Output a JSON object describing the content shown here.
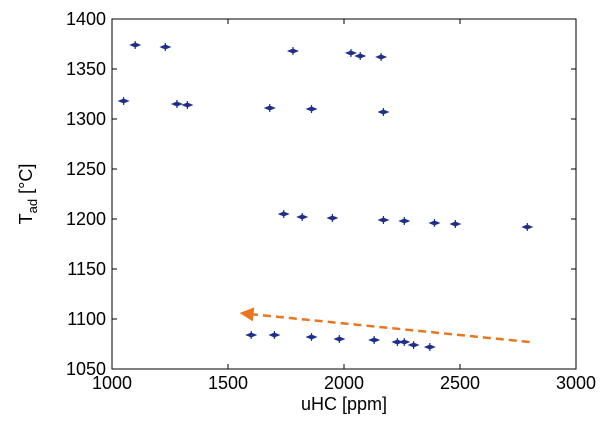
{
  "chart_data": {
    "type": "scatter",
    "title": "",
    "xlabel": "uHC [ppm]",
    "ylabel_main": "T",
    "ylabel_sub": "ad",
    "ylabel_unit": " [°C]",
    "xlim": [
      1000,
      3000
    ],
    "ylim": [
      1050,
      1400
    ],
    "xticks": [
      1000,
      1500,
      2000,
      2500,
      3000
    ],
    "yticks": [
      1050,
      1100,
      1150,
      1200,
      1250,
      1300,
      1350,
      1400
    ],
    "grid": false,
    "marker_color": "#1f2f8a",
    "points": [
      {
        "x": 1050,
        "y": 1318
      },
      {
        "x": 1100,
        "y": 1374
      },
      {
        "x": 1230,
        "y": 1372
      },
      {
        "x": 1280,
        "y": 1315
      },
      {
        "x": 1325,
        "y": 1314
      },
      {
        "x": 1600,
        "y": 1084
      },
      {
        "x": 1680,
        "y": 1311
      },
      {
        "x": 1700,
        "y": 1084
      },
      {
        "x": 1740,
        "y": 1205
      },
      {
        "x": 1780,
        "y": 1368
      },
      {
        "x": 1820,
        "y": 1202
      },
      {
        "x": 1860,
        "y": 1310
      },
      {
        "x": 1860,
        "y": 1082
      },
      {
        "x": 1950,
        "y": 1201
      },
      {
        "x": 1980,
        "y": 1080
      },
      {
        "x": 2030,
        "y": 1366
      },
      {
        "x": 2070,
        "y": 1363
      },
      {
        "x": 2130,
        "y": 1079
      },
      {
        "x": 2160,
        "y": 1362
      },
      {
        "x": 2170,
        "y": 1307
      },
      {
        "x": 2170,
        "y": 1199
      },
      {
        "x": 2230,
        "y": 1077
      },
      {
        "x": 2260,
        "y": 1198
      },
      {
        "x": 2260,
        "y": 1077
      },
      {
        "x": 2300,
        "y": 1074
      },
      {
        "x": 2370,
        "y": 1072
      },
      {
        "x": 2390,
        "y": 1196
      },
      {
        "x": 2480,
        "y": 1195
      },
      {
        "x": 2790,
        "y": 1192
      }
    ],
    "annotation_arrow": {
      "from": {
        "x": 2800,
        "y": 1077
      },
      "to": {
        "x": 1550,
        "y": 1106
      },
      "color": "#e87722",
      "style": "dashed"
    }
  }
}
